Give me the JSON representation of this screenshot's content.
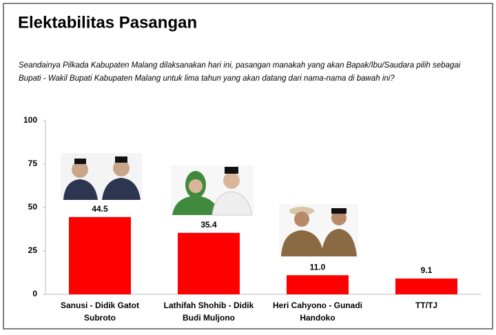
{
  "chart_data": {
    "type": "bar",
    "title": "Elektabilitas Pasangan",
    "subtitle": "Seandainya Pilkada Kabupaten Malang dilaksanakan hari ini, pasangan manakah yang akan Bapak/Ibu/Saudara pilih sebagai Bupati - Wakil Bupati Kabupaten Malang untuk lima tahun yang akan datang dari nama-nama di bawah ini?",
    "categories": [
      "Sanusi - Didik Gatot Subroto",
      "Lathifah Shohib - Didik Budi Muljono",
      "Heri Cahyono  - Gunadi Handoko",
      "TT/TJ"
    ],
    "values": [
      44.5,
      35.4,
      11.0,
      9.1
    ],
    "value_labels": [
      "44.5",
      "35.4",
      "11.0",
      "9.1"
    ],
    "color": "#ff0000",
    "ylim": [
      0,
      100
    ],
    "yticks": [
      0,
      25,
      50,
      75,
      100
    ],
    "grid": false
  }
}
